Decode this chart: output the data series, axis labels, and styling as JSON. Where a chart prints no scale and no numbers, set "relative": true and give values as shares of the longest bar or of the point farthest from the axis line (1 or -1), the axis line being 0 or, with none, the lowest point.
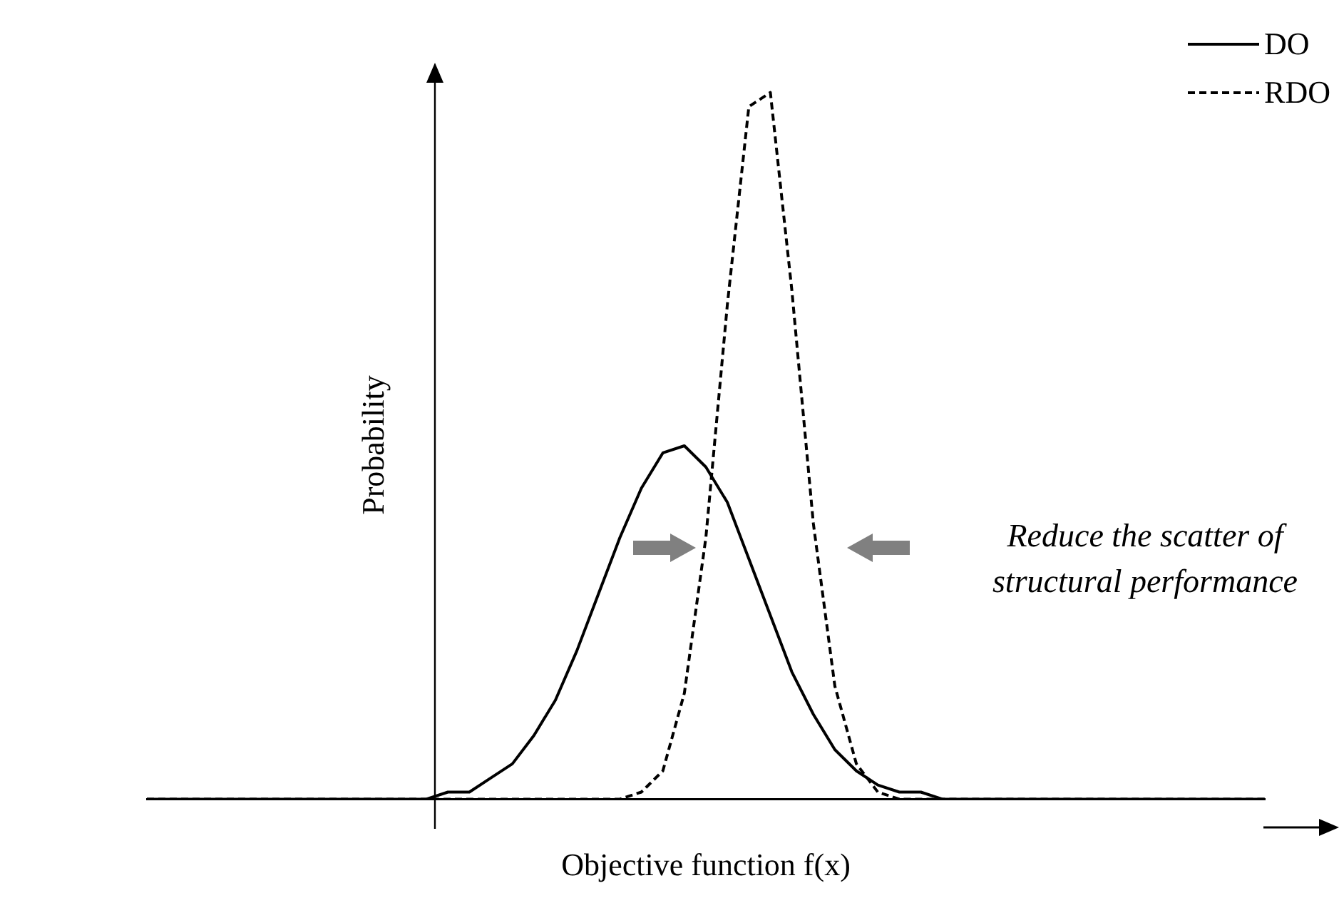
{
  "chart_data": {
    "type": "line",
    "relative": true,
    "xlabel": "Objective function f(x)",
    "ylabel": "Probability",
    "annotations": [
      "Reduce the scatter of structural performance"
    ],
    "grid": false,
    "legend": "top right",
    "marker": "none",
    "categories": [
      null,
      null,
      null,
      null,
      null,
      null,
      null,
      null,
      null,
      null,
      null,
      null,
      null,
      null,
      null,
      null,
      null,
      null,
      null,
      null,
      null,
      null,
      null,
      null,
      null,
      null,
      null,
      null,
      null,
      null,
      null,
      null,
      null,
      null,
      null,
      null,
      null,
      null,
      null,
      null,
      null,
      null,
      null,
      null,
      null,
      null,
      null,
      null,
      null,
      null,
      null,
      null,
      null
    ],
    "series": [
      {
        "name": "DO",
        "color": "#000000",
        "line_style": "solid",
        "values": [
          0,
          0,
          0,
          0,
          0,
          0,
          0,
          0,
          0,
          0,
          0,
          0,
          0,
          0,
          0.01,
          0.01,
          0.03,
          0.05,
          0.09,
          0.14,
          0.21,
          0.29,
          0.37,
          0.44,
          0.49,
          0.5,
          0.47,
          0.42,
          0.34,
          0.26,
          0.18,
          0.12,
          0.07,
          0.04,
          0.02,
          0.01,
          0.01,
          0,
          0,
          0,
          0,
          0,
          0,
          0,
          0,
          0,
          0,
          0,
          0,
          0,
          0,
          0,
          0
        ]
      },
      {
        "name": "RDO",
        "color": "#000000",
        "line_style": "dashed",
        "values": [
          0,
          0,
          0,
          0,
          0,
          0,
          0,
          0,
          0,
          0,
          0,
          0,
          0,
          0,
          0,
          0,
          0,
          0,
          0,
          0,
          0,
          0,
          0,
          0.01,
          0.04,
          0.15,
          0.37,
          0.7,
          0.98,
          1,
          0.72,
          0.39,
          0.16,
          0.05,
          0.01,
          0,
          0,
          0,
          0,
          0,
          0,
          0,
          0,
          0,
          0,
          0,
          0,
          0,
          0,
          0,
          0,
          0,
          0
        ]
      }
    ]
  }
}
